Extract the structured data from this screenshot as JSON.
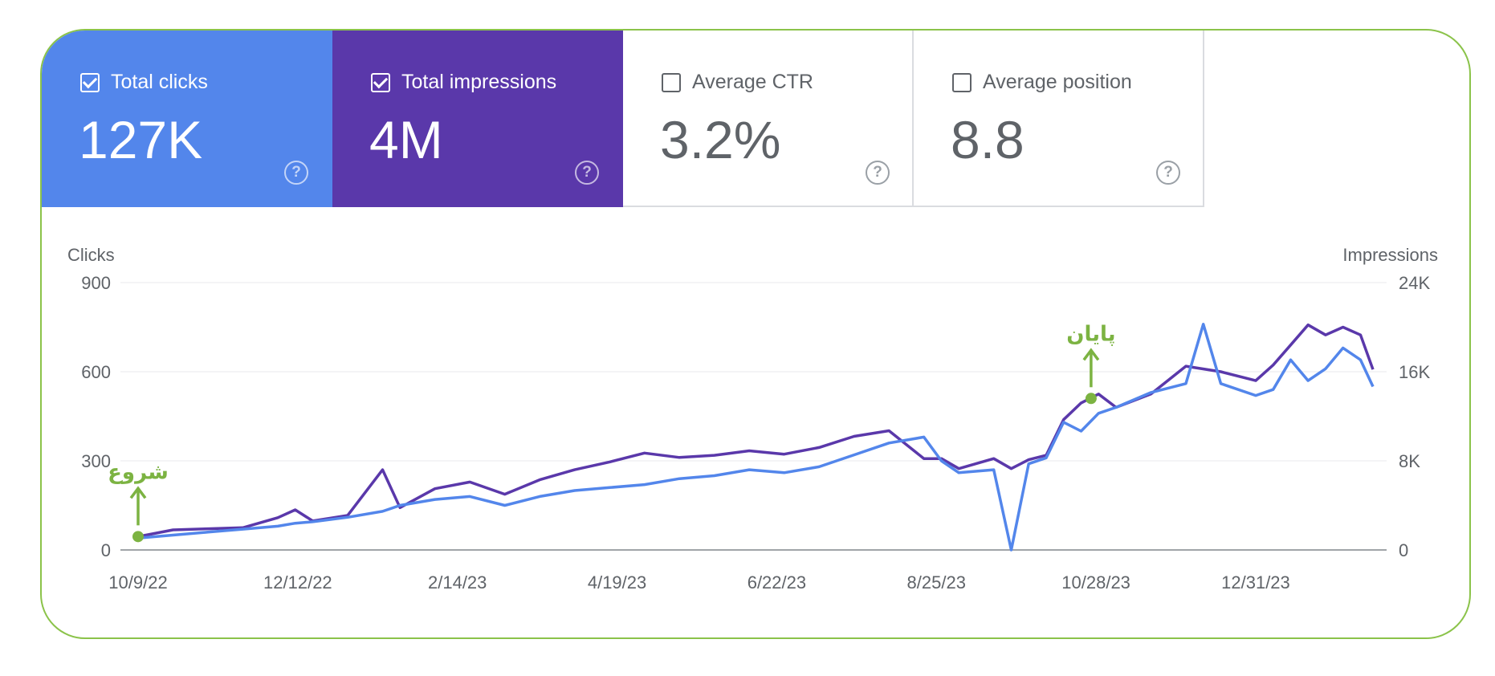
{
  "metrics": [
    {
      "label": "Total clicks",
      "value": "127K",
      "checked": true,
      "color": "#5386eb"
    },
    {
      "label": "Total impressions",
      "value": "4M",
      "checked": true,
      "color": "#5a38aa"
    },
    {
      "label": "Average CTR",
      "value": "3.2%",
      "checked": false
    },
    {
      "label": "Average position",
      "value": "8.8",
      "checked": false
    }
  ],
  "help_glyph": "?",
  "chart_data": {
    "type": "line",
    "ylabel_left": "Clicks",
    "ylabel_right": "Impressions",
    "y_left_range": [
      0,
      900
    ],
    "y_left_ticks": [
      "900",
      "600",
      "300",
      "0"
    ],
    "y_left_tick_values": [
      900,
      600,
      300,
      0
    ],
    "y_right_range": [
      0,
      24000
    ],
    "y_right_ticks": [
      "24K",
      "16K",
      "8K",
      "0"
    ],
    "x_range": [
      "2022-10-09",
      "2024-02-16"
    ],
    "x_ticks": [
      {
        "label": "10/9/22",
        "date": "2022-10-09"
      },
      {
        "label": "12/12/22",
        "date": "2022-12-12"
      },
      {
        "label": "2/14/23",
        "date": "2023-02-14"
      },
      {
        "label": "4/19/23",
        "date": "2023-04-19"
      },
      {
        "label": "6/22/23",
        "date": "2023-06-22"
      },
      {
        "label": "8/25/23",
        "date": "2023-08-25"
      },
      {
        "label": "10/28/23",
        "date": "2023-10-28"
      },
      {
        "label": "12/31/23",
        "date": "2023-12-31"
      }
    ],
    "grid": true,
    "series": [
      {
        "name": "Total impressions",
        "axis": "right",
        "color": "#5a38aa",
        "x": [
          "2022-10-09",
          "2022-10-23",
          "2022-11-06",
          "2022-11-20",
          "2022-12-04",
          "2022-12-11",
          "2022-12-18",
          "2023-01-01",
          "2023-01-15",
          "2023-01-22",
          "2023-02-05",
          "2023-02-19",
          "2023-03-05",
          "2023-03-19",
          "2023-04-02",
          "2023-04-16",
          "2023-04-30",
          "2023-05-14",
          "2023-05-28",
          "2023-06-11",
          "2023-06-25",
          "2023-07-09",
          "2023-07-23",
          "2023-08-06",
          "2023-08-20",
          "2023-08-27",
          "2023-09-03",
          "2023-09-17",
          "2023-09-24",
          "2023-10-01",
          "2023-10-08",
          "2023-10-15",
          "2023-10-22",
          "2023-10-29",
          "2023-11-05",
          "2023-11-19",
          "2023-12-03",
          "2023-12-17",
          "2023-12-31",
          "2024-01-07",
          "2024-01-14",
          "2024-01-21",
          "2024-01-28",
          "2024-02-04",
          "2024-02-11",
          "2024-02-16"
        ],
        "values": [
          1200,
          1800,
          1900,
          2000,
          2900,
          3600,
          2600,
          3100,
          7200,
          3800,
          5500,
          6100,
          5000,
          6300,
          7200,
          7900,
          8700,
          8300,
          8500,
          8900,
          8600,
          9200,
          10200,
          10700,
          8200,
          8200,
          7300,
          8200,
          7300,
          8100,
          8500,
          11700,
          13200,
          14000,
          12800,
          14000,
          16500,
          16000,
          15200,
          16600,
          18400,
          20200,
          19300,
          20000,
          19300,
          16200
        ]
      },
      {
        "name": "Total clicks",
        "axis": "left",
        "color": "#5386eb",
        "x": [
          "2022-10-09",
          "2022-10-23",
          "2022-11-06",
          "2022-11-20",
          "2022-12-04",
          "2022-12-11",
          "2022-12-18",
          "2023-01-01",
          "2023-01-15",
          "2023-01-22",
          "2023-02-05",
          "2023-02-19",
          "2023-03-05",
          "2023-03-19",
          "2023-04-02",
          "2023-04-16",
          "2023-04-30",
          "2023-05-14",
          "2023-05-28",
          "2023-06-11",
          "2023-06-25",
          "2023-07-09",
          "2023-07-23",
          "2023-08-06",
          "2023-08-20",
          "2023-08-27",
          "2023-09-03",
          "2023-09-17",
          "2023-09-24",
          "2023-10-01",
          "2023-10-08",
          "2023-10-15",
          "2023-10-22",
          "2023-10-29",
          "2023-11-05",
          "2023-11-19",
          "2023-12-03",
          "2023-12-10",
          "2023-12-17",
          "2023-12-31",
          "2024-01-07",
          "2024-01-14",
          "2024-01-21",
          "2024-01-28",
          "2024-02-04",
          "2024-02-11",
          "2024-02-16"
        ],
        "values": [
          40,
          50,
          60,
          70,
          80,
          90,
          95,
          110,
          130,
          150,
          170,
          180,
          150,
          180,
          200,
          210,
          220,
          240,
          250,
          270,
          260,
          280,
          320,
          360,
          380,
          300,
          260,
          270,
          0,
          290,
          310,
          430,
          400,
          460,
          480,
          530,
          560,
          760,
          560,
          520,
          540,
          640,
          570,
          610,
          680,
          640,
          550
        ]
      }
    ],
    "annotations": [
      {
        "text": "شروع",
        "date": "2022-10-09",
        "value": 45,
        "color": "#7cb342"
      },
      {
        "text": "پایان",
        "date": "2023-10-26",
        "value": 510,
        "color": "#7cb342"
      }
    ]
  }
}
